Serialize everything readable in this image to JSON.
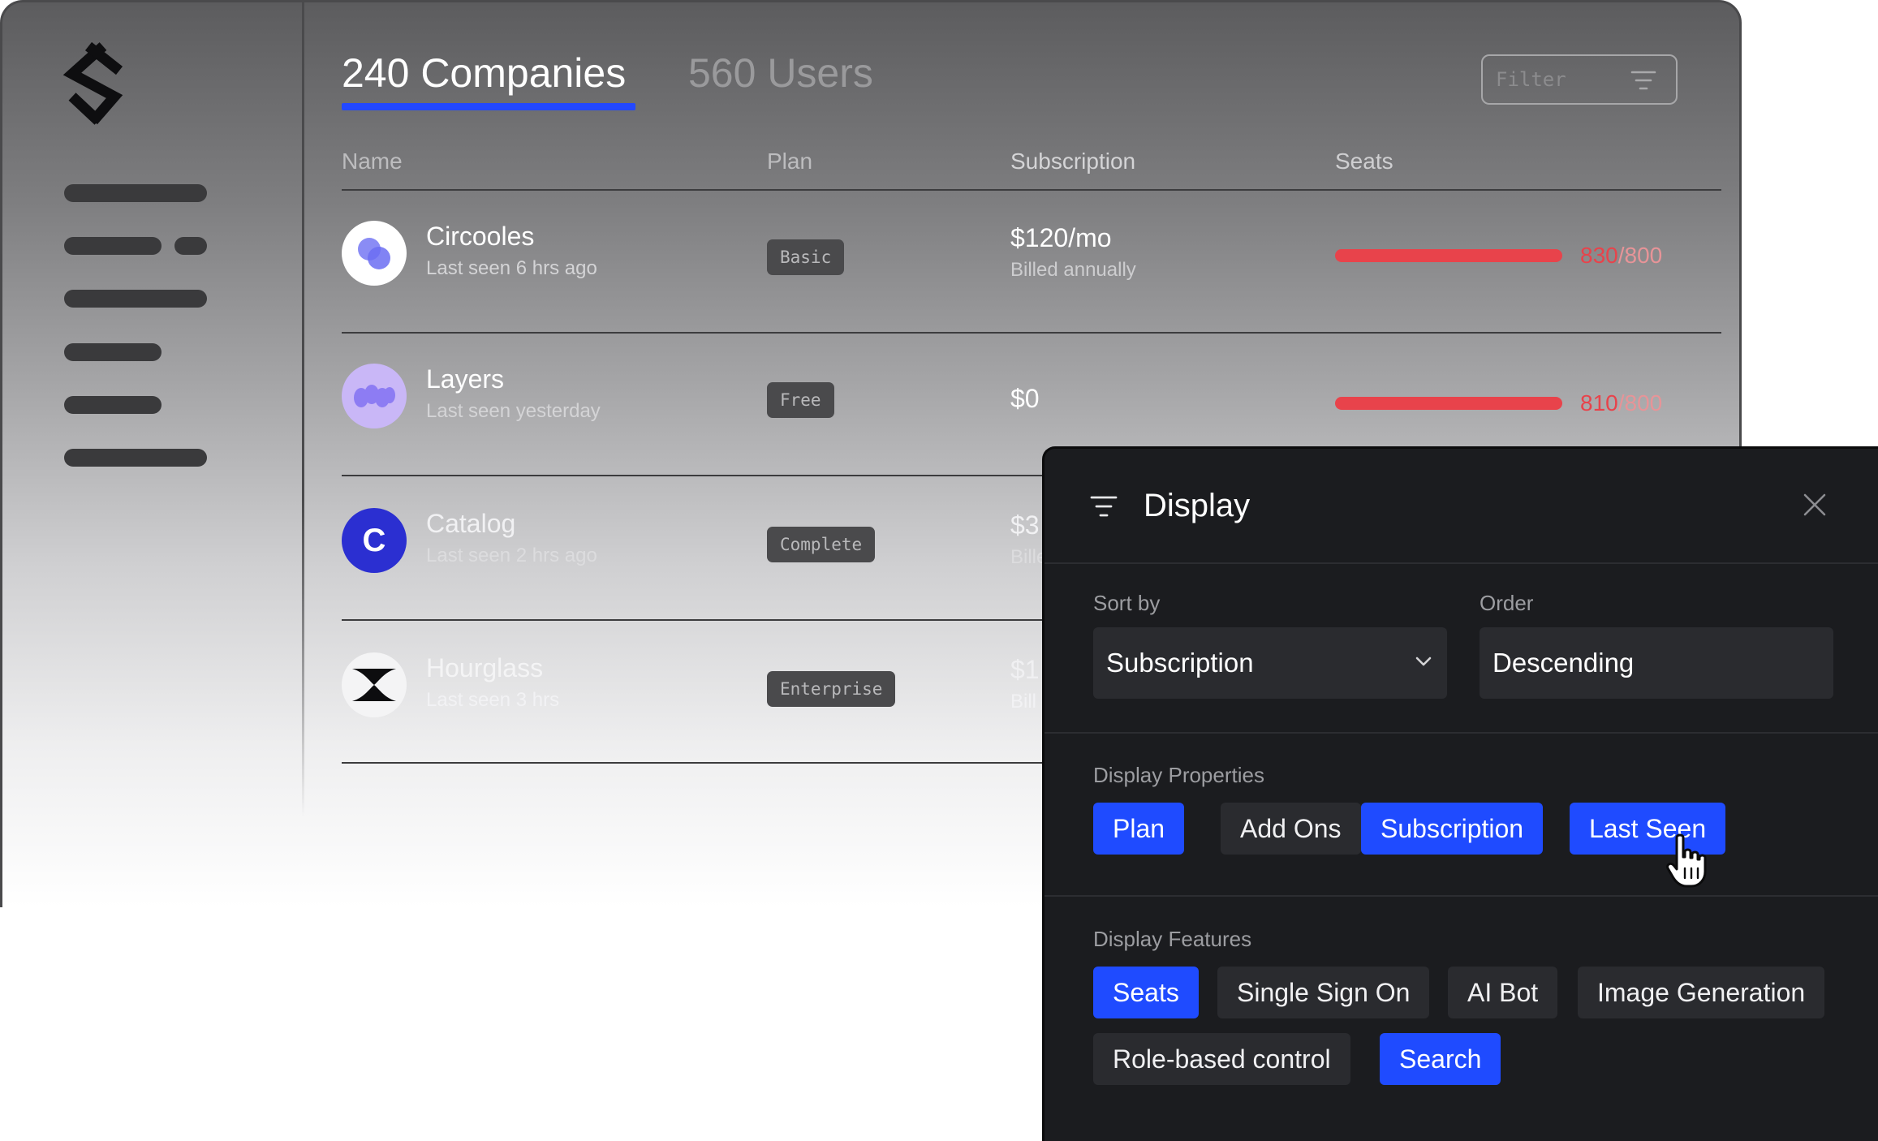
{
  "tabs": {
    "companies": "240 Companies",
    "users": "560 Users"
  },
  "filter": {
    "placeholder": "Filter",
    "icon": "filter-icon"
  },
  "columns": {
    "name": "Name",
    "plan": "Plan",
    "subscription": "Subscription",
    "seats": "Seats"
  },
  "rows": [
    {
      "name": "Circooles",
      "last_seen": "Last seen 6 hrs ago",
      "plan": "Basic",
      "price": "$120/mo",
      "billing": "Billed annually",
      "seats_used": "830",
      "seats_total": "/800"
    },
    {
      "name": "Layers",
      "last_seen": "Last seen yesterday",
      "plan": "Free",
      "price": "$0",
      "billing": "",
      "seats_used": "810",
      "seats_total": "/800"
    },
    {
      "name": "Catalog",
      "last_seen": "Last seen 2 hrs ago",
      "plan": "Complete",
      "price": "$3",
      "billing": "Bille",
      "avatar_letter": "C"
    },
    {
      "name": "Hourglass",
      "last_seen": "Last seen 3 hrs",
      "plan": "Enterprise",
      "price": "$1",
      "billing": "Bill"
    }
  ],
  "display_panel": {
    "title": "Display",
    "sort_by_label": "Sort by",
    "sort_by_value": "Subscription",
    "order_label": "Order",
    "order_value": "Descending",
    "properties_label": "Display Properties",
    "properties": [
      {
        "label": "Plan",
        "selected": true
      },
      {
        "label": "Add Ons",
        "selected": false
      },
      {
        "label": "Subscription",
        "selected": true
      },
      {
        "label": "Last Seen",
        "selected": true
      }
    ],
    "features_label": "Display Features",
    "features": [
      {
        "label": "Seats",
        "selected": true
      },
      {
        "label": "Single Sign On",
        "selected": false
      },
      {
        "label": "AI Bot",
        "selected": false
      },
      {
        "label": "Image Generation",
        "selected": false
      },
      {
        "label": "Role-based control",
        "selected": false
      },
      {
        "label": "Search",
        "selected": true
      }
    ]
  },
  "colors": {
    "accent": "#1f4bff",
    "over_limit": "#e8434b",
    "panel_bg": "#1b1c1f",
    "chip_off": "#2a2b2f"
  }
}
